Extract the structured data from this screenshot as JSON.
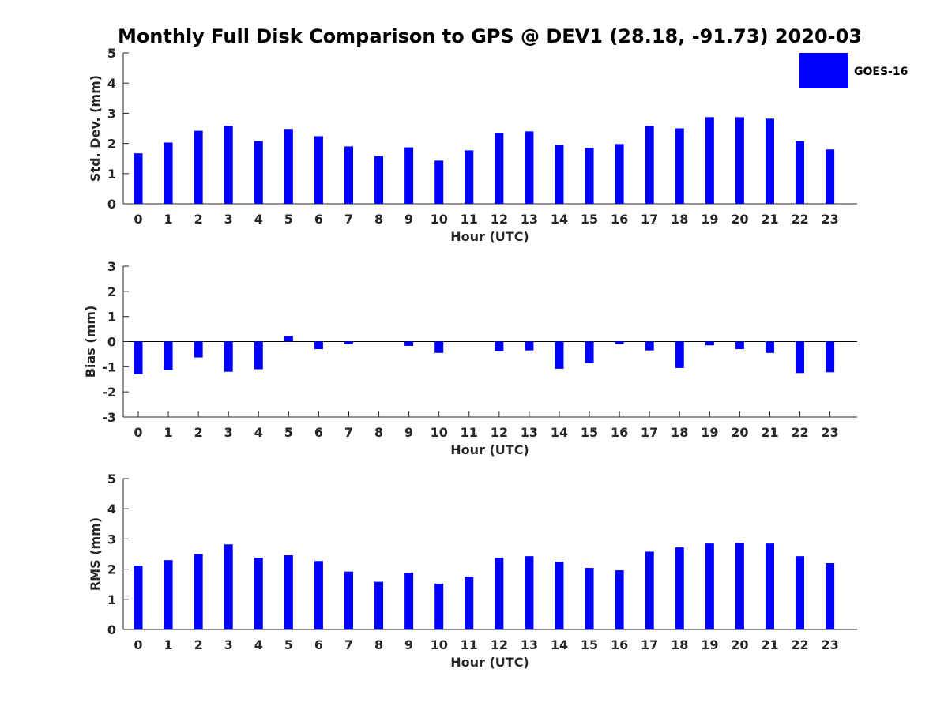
{
  "title": "Monthly Full Disk Comparison to GPS @ DEV1 (28.18, -91.73) 2020-03",
  "colors": {
    "bar": "#0000ff",
    "axis": "#262626",
    "zero_line": "#000000"
  },
  "legend": {
    "label": "GOES-16",
    "placement": "top-right"
  },
  "chart_data": [
    {
      "type": "bar",
      "xlabel": "Hour (UTC)",
      "ylabel": "Std. Dev. (mm)",
      "ylim": [
        0,
        5
      ],
      "yticks": [
        0,
        1,
        2,
        3,
        4,
        5
      ],
      "categories": [
        "0",
        "1",
        "2",
        "3",
        "4",
        "5",
        "6",
        "7",
        "8",
        "9",
        "10",
        "11",
        "12",
        "13",
        "14",
        "15",
        "16",
        "17",
        "18",
        "19",
        "20",
        "21",
        "22",
        "23"
      ],
      "series": [
        {
          "name": "GOES-16",
          "values": [
            1.67,
            2.03,
            2.42,
            2.58,
            2.08,
            2.48,
            2.24,
            1.9,
            1.58,
            1.87,
            1.43,
            1.77,
            2.35,
            2.4,
            1.95,
            1.85,
            1.98,
            2.58,
            2.5,
            2.87,
            2.87,
            2.82,
            2.08,
            1.8
          ]
        }
      ]
    },
    {
      "type": "bar",
      "xlabel": "Hour (UTC)",
      "ylabel": "Bias (mm)",
      "ylim": [
        -3,
        3
      ],
      "yticks": [
        -3,
        -2,
        -1,
        0,
        1,
        2,
        3
      ],
      "categories": [
        "0",
        "1",
        "2",
        "3",
        "4",
        "5",
        "6",
        "7",
        "8",
        "9",
        "10",
        "11",
        "12",
        "13",
        "14",
        "15",
        "16",
        "17",
        "18",
        "19",
        "20",
        "21",
        "22",
        "23"
      ],
      "series": [
        {
          "name": "GOES-16",
          "values": [
            -1.3,
            -1.13,
            -0.63,
            -1.2,
            -1.1,
            0.22,
            -0.3,
            -0.1,
            0.0,
            -0.17,
            -0.45,
            0.0,
            -0.38,
            -0.35,
            -1.08,
            -0.85,
            -0.1,
            -0.35,
            -1.05,
            -0.15,
            -0.3,
            -0.45,
            -1.25,
            -1.22
          ]
        }
      ]
    },
    {
      "type": "bar",
      "xlabel": "Hour (UTC)",
      "ylabel": "RMS (mm)",
      "ylim": [
        0,
        5
      ],
      "yticks": [
        0,
        1,
        2,
        3,
        4,
        5
      ],
      "categories": [
        "0",
        "1",
        "2",
        "3",
        "4",
        "5",
        "6",
        "7",
        "8",
        "9",
        "10",
        "11",
        "12",
        "13",
        "14",
        "15",
        "16",
        "17",
        "18",
        "19",
        "20",
        "21",
        "22",
        "23"
      ],
      "series": [
        {
          "name": "GOES-16",
          "values": [
            2.12,
            2.3,
            2.5,
            2.82,
            2.38,
            2.46,
            2.27,
            1.92,
            1.58,
            1.88,
            1.52,
            1.75,
            2.38,
            2.43,
            2.25,
            2.04,
            1.96,
            2.58,
            2.72,
            2.85,
            2.87,
            2.85,
            2.43,
            2.2
          ]
        }
      ]
    }
  ]
}
